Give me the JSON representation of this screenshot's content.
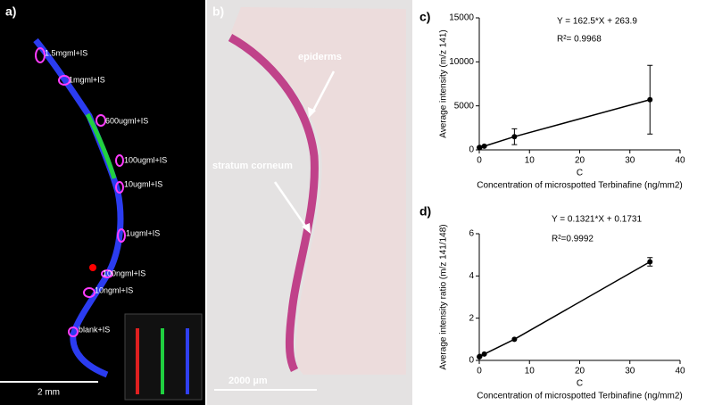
{
  "panels": {
    "a": {
      "label": "a)",
      "spot_labels": [
        "1.5mgml+IS",
        "1mgml+IS",
        "600ugml+IS",
        "100ugml+IS",
        "10ugml+IS",
        "1ugml+IS",
        "100ngml+IS",
        "10ngml+IS",
        "blank+IS"
      ],
      "scale_bar": "2 mm"
    },
    "b": {
      "label": "b)",
      "annotations": [
        "epiderms",
        "stratum corneum"
      ],
      "scale_bar": "2000 µm"
    }
  },
  "chart_data": [
    {
      "type": "line",
      "label": "c)",
      "equation": "Y = 162.5*X + 263.9",
      "r_squared": "R²=  0.9968",
      "y_label": "Average intensity (m/z 141)",
      "x_symbol": "C",
      "x_label": "Concentration of microspotted Terbinafine (ng/mm2)",
      "x": [
        0.01,
        0.1,
        1,
        7,
        34
      ],
      "y": [
        270,
        280,
        420,
        1500,
        5700
      ],
      "errors": [
        null,
        null,
        null,
        900,
        3900
      ],
      "color": "#000000",
      "xlim": [
        0,
        40
      ],
      "xticks": [
        0,
        10,
        20,
        30,
        40
      ],
      "ylim": [
        0,
        15000
      ],
      "yticks": [
        0,
        5000,
        10000,
        15000
      ]
    },
    {
      "type": "line",
      "label": "d)",
      "equation": "Y = 0.1321*X + 0.1731",
      "r_squared": "R²=0.9992",
      "y_label": "Average intensity ratio (m/z 141/148)",
      "x_symbol": "C",
      "x_label": "Concentration of microspotted Terbinafine (ng/mm2)",
      "x": [
        0.01,
        0.1,
        1,
        7,
        34
      ],
      "y": [
        0.17,
        0.19,
        0.3,
        1.0,
        4.67
      ],
      "errors": [
        null,
        null,
        null,
        null,
        0.2
      ],
      "color": "#000000",
      "xlim": [
        0,
        40
      ],
      "xticks": [
        0,
        10,
        20,
        30,
        40
      ],
      "ylim": [
        0,
        6
      ],
      "yticks": [
        0,
        2,
        4,
        6
      ]
    }
  ]
}
